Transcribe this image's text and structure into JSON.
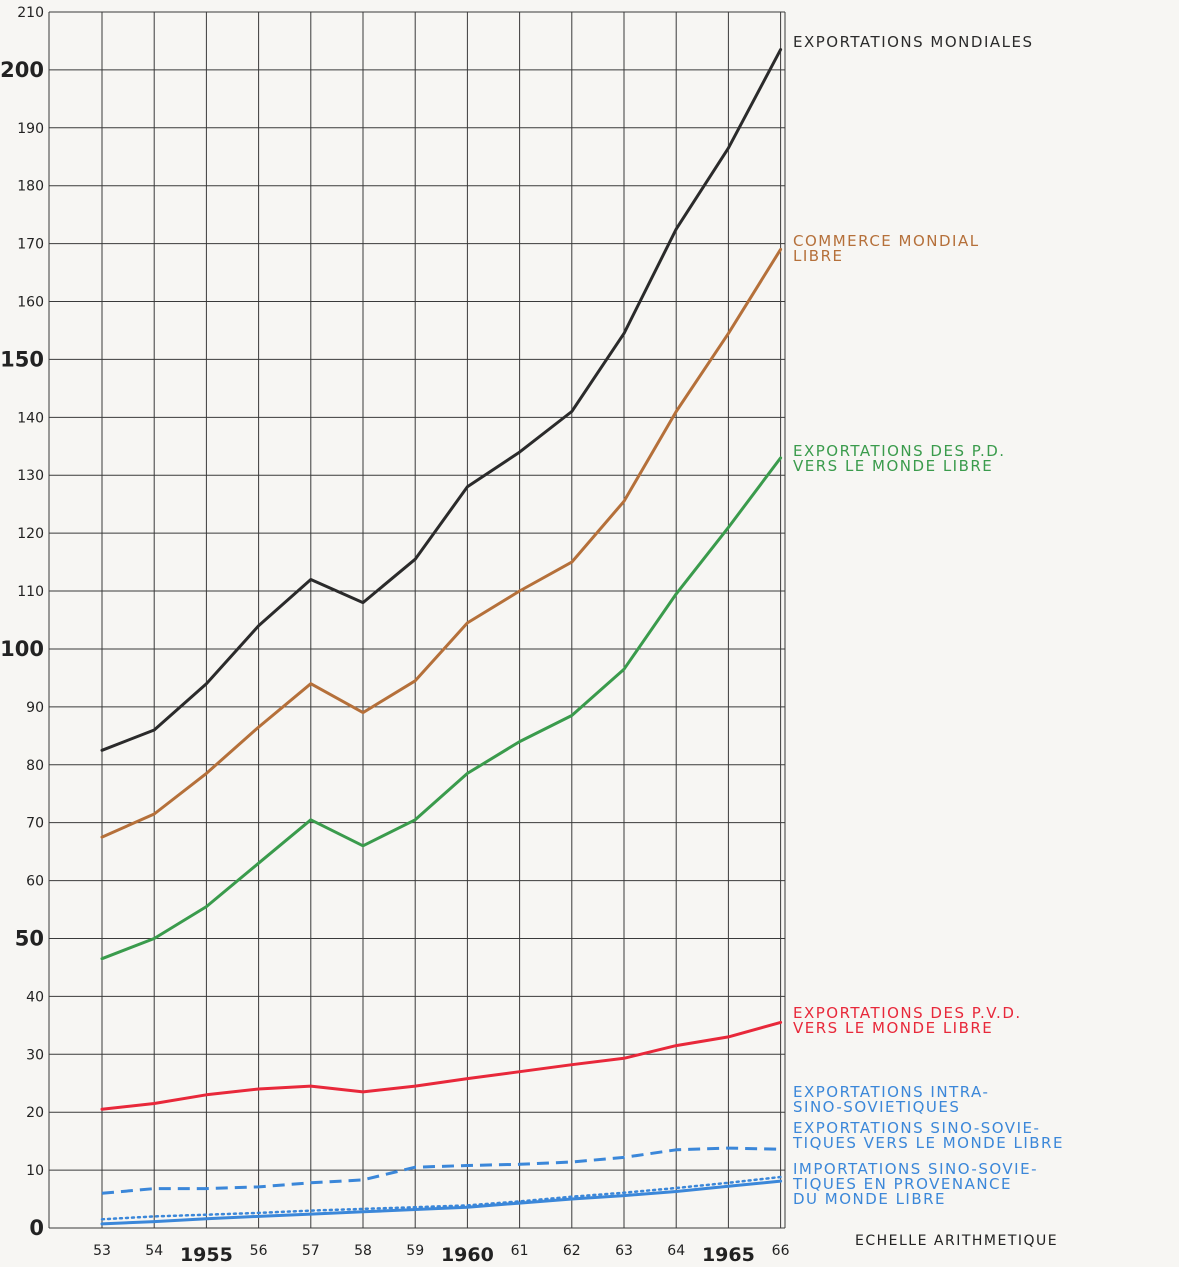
{
  "chart_data": {
    "type": "line",
    "x": [
      53,
      54,
      55,
      56,
      57,
      58,
      59,
      60,
      61,
      62,
      63,
      64,
      65,
      66
    ],
    "x_tick_labels": [
      "53",
      "54",
      "1955",
      "56",
      "57",
      "58",
      "59",
      "1960",
      "61",
      "62",
      "63",
      "64",
      "1965",
      "66"
    ],
    "ylim": [
      0,
      210
    ],
    "y_ticks": [
      0,
      10,
      20,
      30,
      40,
      50,
      60,
      70,
      80,
      90,
      100,
      110,
      120,
      130,
      140,
      150,
      160,
      170,
      180,
      190,
      200,
      210
    ],
    "grid": true,
    "legend": "line-end labels on right",
    "scale_note": "ECHELLE ARITHMETIQUE",
    "series": [
      {
        "name": "EXPORTATIONS MONDIALES",
        "label_lines": [
          "EXPORTATIONS MONDIALES"
        ],
        "color": "#2b2b2b",
        "style": "solid",
        "values": [
          82.5,
          86,
          94,
          104,
          112,
          108,
          115.5,
          128,
          134,
          141,
          154.5,
          172.5,
          186.5,
          203.5
        ]
      },
      {
        "name": "COMMERCE MONDIAL LIBRE",
        "label_lines": [
          "COMMERCE MONDIAL",
          "LIBRE"
        ],
        "color": "#b5703a",
        "style": "solid",
        "values": [
          67.5,
          71.5,
          78.5,
          86.5,
          94,
          89,
          94.5,
          104.5,
          110,
          115,
          125.5,
          141,
          154.5,
          169
        ]
      },
      {
        "name": "EXPORTATIONS DES P.D. VERS LE MONDE LIBRE",
        "label_lines": [
          "EXPORTATIONS DES P.D.",
          "VERS LE MONDE LIBRE"
        ],
        "color": "#3a9b4c",
        "style": "solid",
        "values": [
          46.5,
          50,
          55.5,
          63,
          70.5,
          66,
          70.5,
          78.5,
          84,
          88.5,
          96.5,
          109.5,
          121,
          133
        ]
      },
      {
        "name": "EXPORTATIONS DES P.V.D. VERS LE MONDE LIBRE",
        "label_lines": [
          "EXPORTATIONS DES P.V.D.",
          "VERS LE MONDE LIBRE"
        ],
        "color": "#e8283a",
        "style": "solid",
        "values": [
          20.5,
          21.5,
          23,
          24,
          24.5,
          23.5,
          24.5,
          25.8,
          27,
          28.2,
          29.3,
          31.5,
          33,
          35.5
        ]
      },
      {
        "name": "EXPORTATIONS INTRA-SINO-SOVIETIQUES",
        "label_lines": [
          "EXPORTATIONS INTRA-",
          "SINO-SOVIETIQUES"
        ],
        "color": "#3b87d9",
        "style": "dotted",
        "values": [
          1.5,
          2,
          2.3,
          2.6,
          3,
          3.3,
          3.6,
          3.9,
          4.6,
          5.4,
          6.1,
          6.9,
          7.8,
          8.8
        ]
      },
      {
        "name": "EXPORTATIONS SINO-SOVIETIQUES VERS LE MONDE LIBRE",
        "label_lines": [
          "EXPORTATIONS SINO-SOVIE-",
          "TIQUES VERS LE MONDE LIBRE"
        ],
        "color": "#3b87d9",
        "style": "dashed",
        "values": [
          6,
          6.8,
          6.8,
          7.1,
          7.8,
          8.3,
          10.5,
          10.8,
          11,
          11.4,
          12.2,
          13.5,
          13.8,
          13.6
        ]
      },
      {
        "name": "IMPORTATIONS SINO-SOVIETIQUES EN PROVENANCE DU MONDE LIBRE",
        "label_lines": [
          "IMPORTATIONS SINO-SOVIE-",
          "TIQUES EN PROVENANCE",
          "DU MONDE LIBRE"
        ],
        "color": "#3b87d9",
        "style": "solid",
        "values": [
          0.7,
          1.1,
          1.6,
          2.0,
          2.4,
          2.8,
          3.2,
          3.6,
          4.3,
          5.0,
          5.6,
          6.3,
          7.2,
          8.1
        ]
      }
    ]
  }
}
